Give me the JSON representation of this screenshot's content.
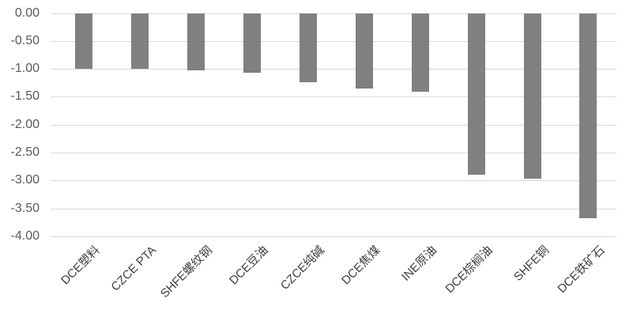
{
  "chart_data": {
    "type": "bar",
    "title": "",
    "xlabel": "",
    "ylabel": "",
    "categories": [
      "DCE塑料",
      "CZCE PTA",
      "SHFE螺纹钢",
      "DCE豆油",
      "CZCE纯碱",
      "DCE焦煤",
      "INE原油",
      "DCE棕榈油",
      "SHFE铜",
      "DCE铁矿石"
    ],
    "values": [
      -1.0,
      -1.0,
      -1.02,
      -1.07,
      -1.24,
      -1.35,
      -1.41,
      -2.9,
      -2.97,
      -3.67
    ],
    "ylim": [
      -4.0,
      0.0
    ],
    "y_tick_step": 0.5,
    "y_tick_labels": [
      "0.00",
      "-0.50",
      "-1.00",
      "-1.50",
      "-2.00",
      "-2.50",
      "-3.00",
      "-3.50",
      "-4.00"
    ],
    "grid": true,
    "legend": false,
    "bar_color": "#808080",
    "gridline_color": "#d9d9d9",
    "y_label_color": "#595959",
    "x_label_color": "#3f3f3f",
    "background_color": "#ffffff"
  }
}
